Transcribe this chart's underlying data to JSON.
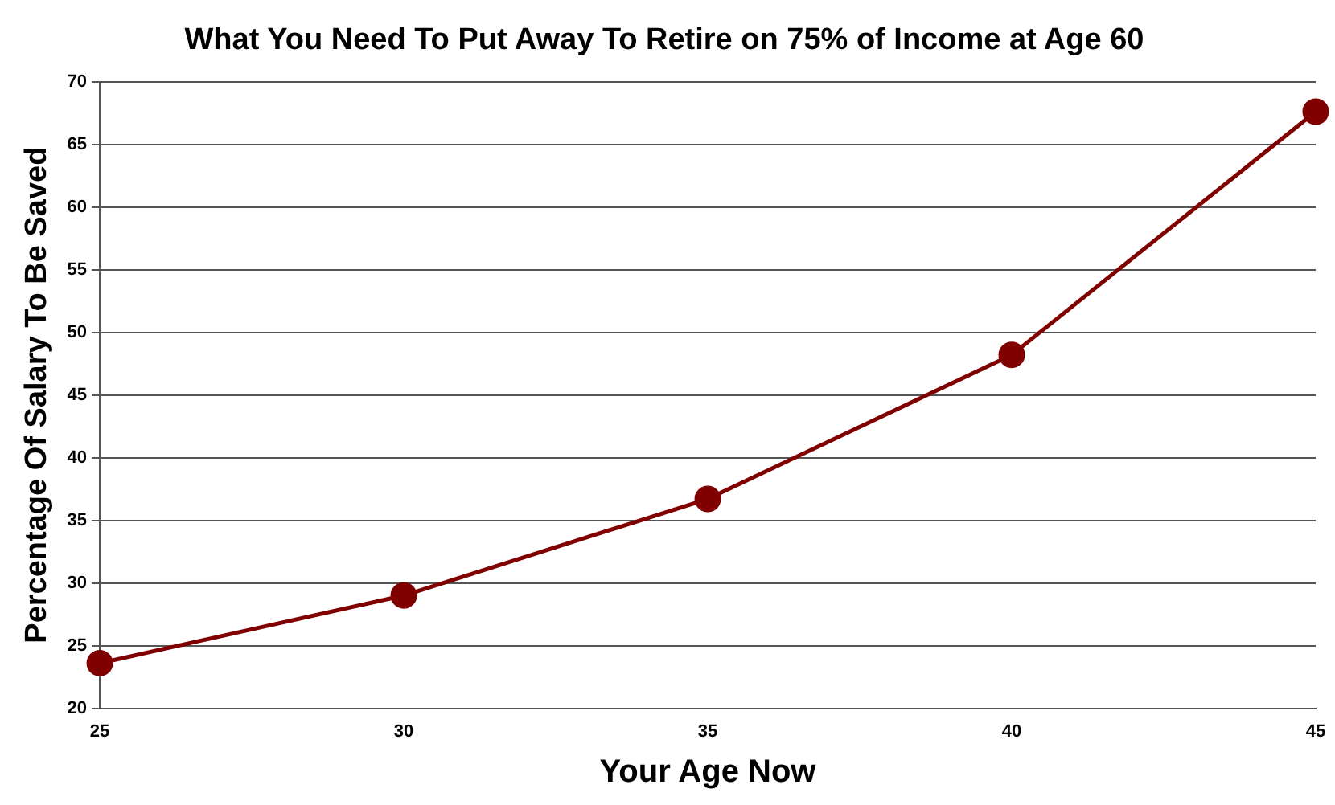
{
  "chart_data": {
    "type": "line",
    "title": "What You Need To Put Away To Retire on 75% of Income at Age 60",
    "xlabel": "Your Age Now",
    "ylabel": "Percentage Of Salary To Be Saved",
    "categories": [
      "25",
      "30",
      "35",
      "40",
      "45"
    ],
    "series": [
      {
        "color": "#800000",
        "values": [
          23.6,
          29,
          36.7,
          48.2,
          67.6
        ]
      }
    ],
    "ylim": [
      20,
      70
    ],
    "yticks": [
      20,
      25,
      30,
      35,
      40,
      45,
      50,
      55,
      60,
      65,
      70
    ],
    "grid": "y",
    "legend": false,
    "marker": "circle",
    "line_style": "solid"
  }
}
